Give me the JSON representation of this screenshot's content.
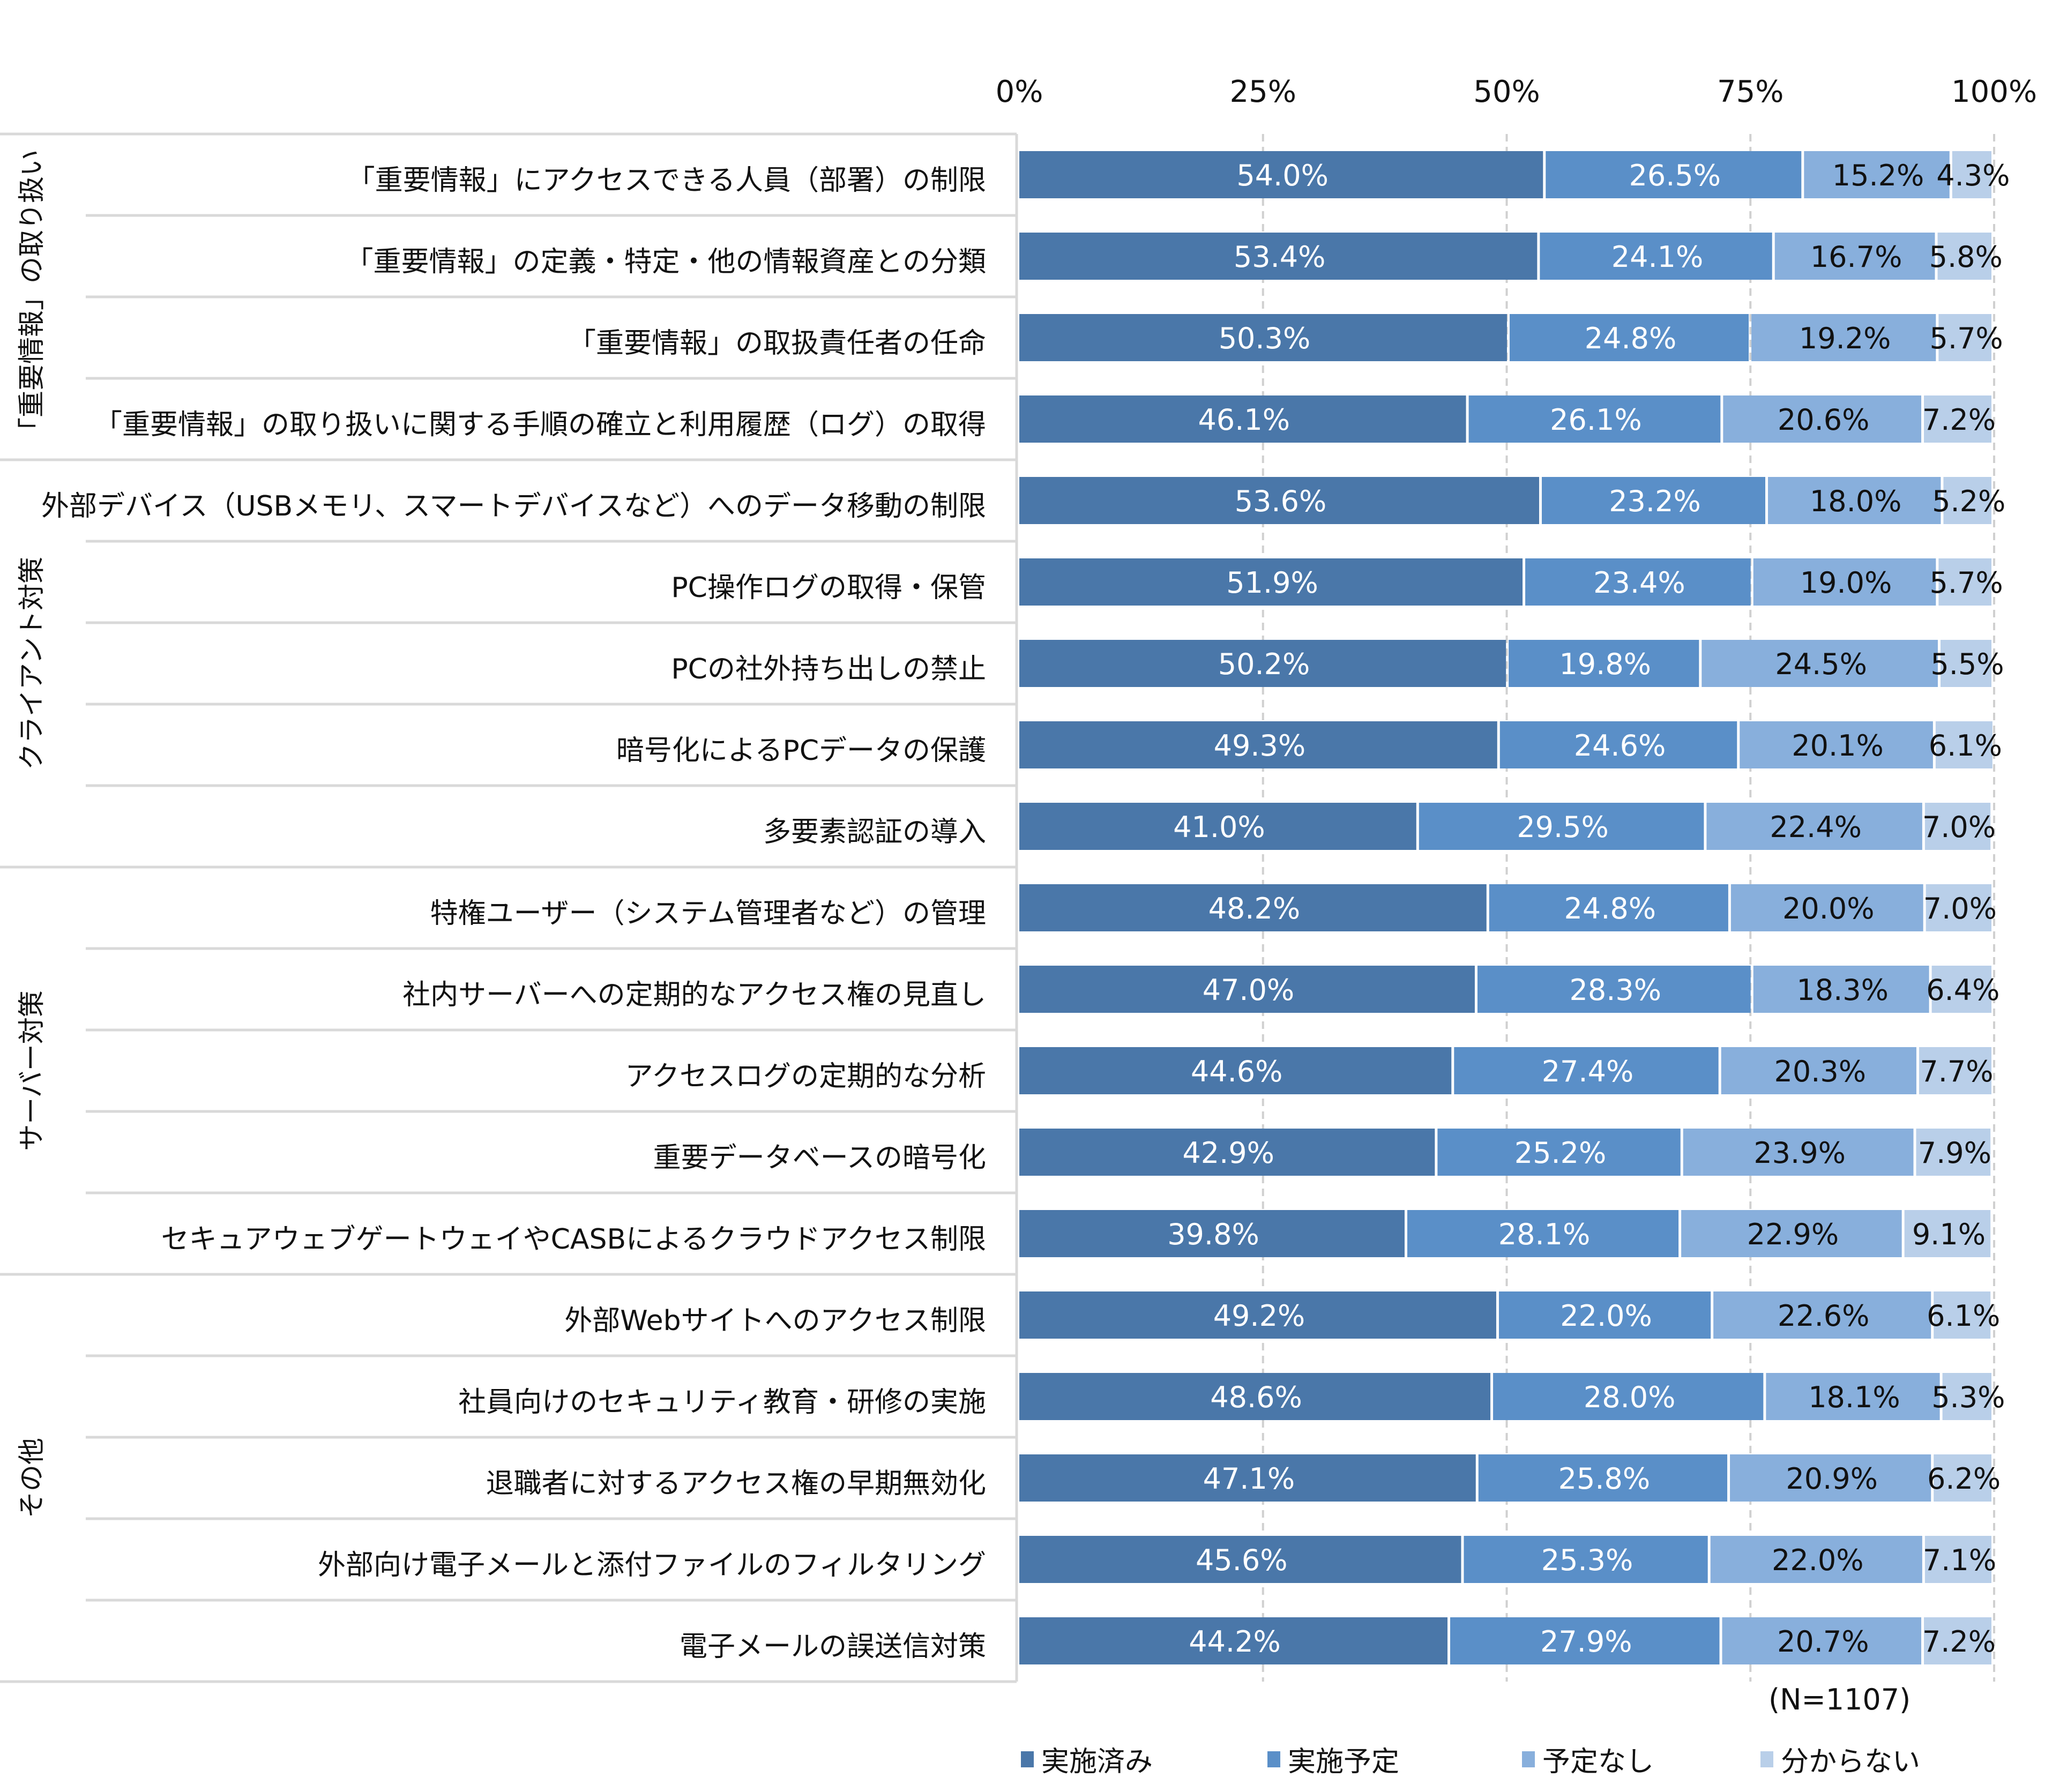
{
  "chart_data": {
    "type": "bar",
    "orientation": "horizontal",
    "stacked": "percent",
    "xlim": [
      0,
      100
    ],
    "x_ticks": [
      "0%",
      "25%",
      "50%",
      "75%",
      "100%"
    ],
    "grid": "vertical dashed",
    "legend_position": "bottom",
    "note": "(N=1107)",
    "groups": [
      {
        "label": "「重要情報」の取り扱い",
        "rows": [
          0,
          1,
          2,
          3
        ]
      },
      {
        "label": "クライアント対策",
        "rows": [
          4,
          5,
          6,
          7,
          8
        ]
      },
      {
        "label": "サーバー対策",
        "rows": [
          9,
          10,
          11,
          12,
          13
        ]
      },
      {
        "label": "その他",
        "rows": [
          14,
          15,
          16,
          17,
          18
        ]
      }
    ],
    "categories": [
      "「重要情報」にアクセスできる人員（部署）の制限",
      "「重要情報」の定義・特定・他の情報資産との分類",
      "「重要情報」の取扱責任者の任命",
      "「重要情報」の取り扱いに関する手順の確立と利用履歴（ログ）の取得",
      "外部デバイス（USBメモリ、スマートデバイスなど）へのデータ移動の制限",
      "PC操作ログの取得・保管",
      "PCの社外持ち出しの禁止",
      "暗号化によるPCデータの保護",
      "多要素認証の導入",
      "特権ユーザー（システム管理者など）の管理",
      "社内サーバーへの定期的なアクセス権の見直し",
      "アクセスログの定期的な分析",
      "重要データベースの暗号化",
      "セキュアウェブゲートウェイやCASBによるクラウドアクセス制限",
      "外部Webサイトへのアクセス制限",
      "社員向けのセキュリティ教育・研修の実施",
      "退職者に対するアクセス権の早期無効化",
      "外部向け電子メールと添付ファイルのフィルタリング",
      "電子メールの誤送信対策"
    ],
    "series": [
      {
        "name": "実施済み",
        "color": "#4a77a9",
        "label_color": "#ffffff",
        "values": [
          54.0,
          53.4,
          50.3,
          46.1,
          53.6,
          51.9,
          50.2,
          49.3,
          41.0,
          48.2,
          47.0,
          44.6,
          42.9,
          39.8,
          49.2,
          48.6,
          47.1,
          45.6,
          44.2
        ]
      },
      {
        "name": "実施予定",
        "color": "#5a8fc8",
        "label_color": "#ffffff",
        "values": [
          26.5,
          24.1,
          24.8,
          26.1,
          23.2,
          23.4,
          19.8,
          24.6,
          29.5,
          24.8,
          28.3,
          27.4,
          25.2,
          28.1,
          22.0,
          28.0,
          25.8,
          25.3,
          27.9
        ]
      },
      {
        "name": "予定なし",
        "color": "#88afdc",
        "label_color": "#111111",
        "values": [
          15.2,
          16.7,
          19.2,
          20.6,
          18.0,
          19.0,
          24.5,
          20.1,
          22.4,
          20.0,
          18.3,
          20.3,
          23.9,
          22.9,
          22.6,
          18.1,
          20.9,
          22.0,
          20.7
        ]
      },
      {
        "name": "分からない",
        "color": "#b9cfe9",
        "label_color": "#111111",
        "values": [
          4.3,
          5.8,
          5.7,
          7.2,
          5.2,
          5.7,
          5.5,
          6.1,
          7.0,
          7.0,
          6.4,
          7.7,
          7.9,
          9.1,
          6.1,
          5.3,
          6.2,
          7.1,
          7.2
        ]
      }
    ]
  }
}
